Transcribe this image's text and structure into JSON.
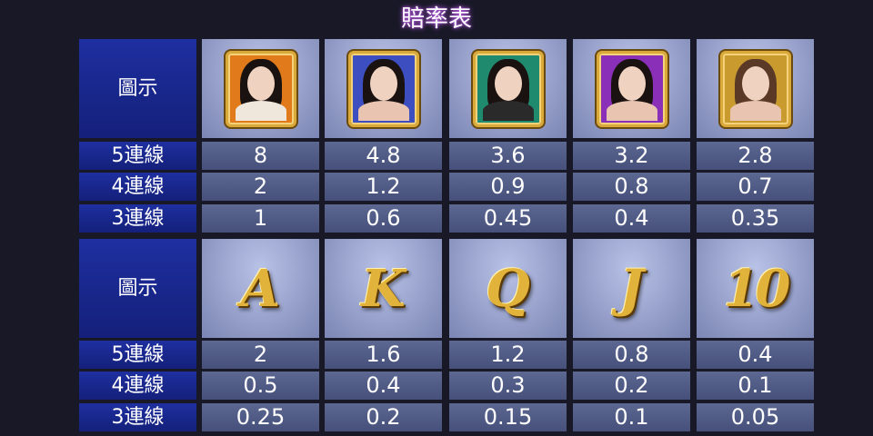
{
  "title": "賠率表",
  "tables": [
    {
      "header_label": "圖示",
      "symbols": [
        {
          "icon": "portrait-orange-frame-icon",
          "bg": "#e07a1a"
        },
        {
          "icon": "portrait-blue-frame-icon",
          "bg": "#3d4fc0"
        },
        {
          "icon": "portrait-green-frame-icon",
          "bg": "#1f8a6e"
        },
        {
          "icon": "portrait-purple-frame-icon",
          "bg": "#8a2fb8"
        },
        {
          "icon": "portrait-gold-frame-icon",
          "bg": "#c99a2e"
        }
      ],
      "rows": [
        {
          "label": "5連線",
          "values": [
            "8",
            "4.8",
            "3.6",
            "3.2",
            "2.8"
          ]
        },
        {
          "label": "4連線",
          "values": [
            "2",
            "1.2",
            "0.9",
            "0.8",
            "0.7"
          ]
        },
        {
          "label": "3連線",
          "values": [
            "1",
            "0.6",
            "0.45",
            "0.4",
            "0.35"
          ]
        }
      ]
    },
    {
      "header_label": "圖示",
      "symbols": [
        {
          "icon": "letter-a-icon",
          "text": "A"
        },
        {
          "icon": "letter-k-icon",
          "text": "K"
        },
        {
          "icon": "letter-q-icon",
          "text": "Q"
        },
        {
          "icon": "letter-j-icon",
          "text": "J"
        },
        {
          "icon": "number-10-icon",
          "text": "10"
        }
      ],
      "rows": [
        {
          "label": "5連線",
          "values": [
            "2",
            "1.6",
            "1.2",
            "0.8",
            "0.4"
          ]
        },
        {
          "label": "4連線",
          "values": [
            "0.5",
            "0.4",
            "0.3",
            "0.2",
            "0.1"
          ]
        },
        {
          "label": "3連線",
          "values": [
            "0.25",
            "0.2",
            "0.15",
            "0.1",
            "0.05"
          ]
        }
      ]
    }
  ]
}
